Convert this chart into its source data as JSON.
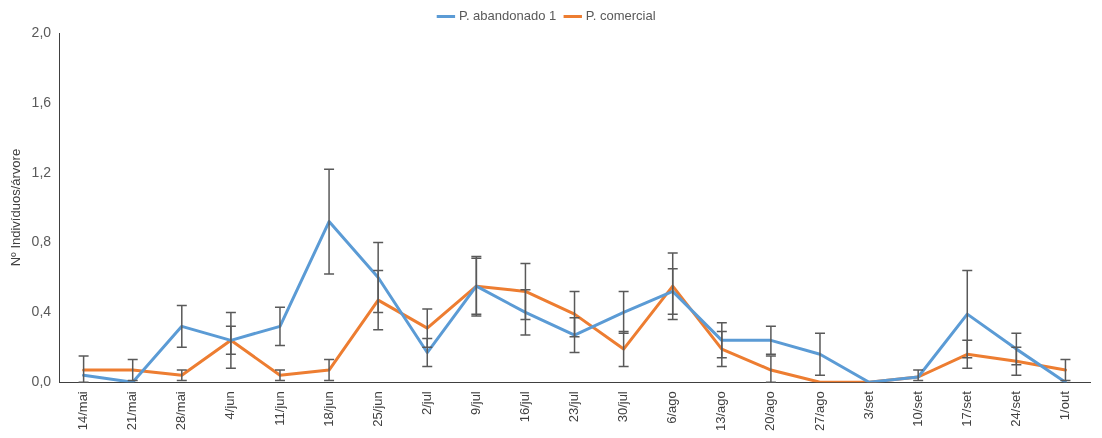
{
  "chart_data": {
    "type": "line",
    "ylabel": "Nº Indivíduos/árvore",
    "categories": [
      "14/mai",
      "21/mai",
      "28/mai",
      "4/jun",
      "11/jun",
      "18/jun",
      "25/jun",
      "2/jul",
      "9/jul",
      "16/jul",
      "23/jul",
      "30/jul",
      "6/ago",
      "13/ago",
      "20/ago",
      "27/ago",
      "3/set",
      "10/set",
      "17/set",
      "24/set",
      "1/out"
    ],
    "series": [
      {
        "name": "P. abandonado 1",
        "color": "#5b9bd5",
        "values": [
          0.04,
          0,
          0.32,
          0.24,
          0.32,
          0.92,
          0.6,
          0.17,
          0.55,
          0.4,
          0.27,
          0.4,
          0.52,
          0.24,
          0.24,
          0.16,
          0,
          0.03,
          0.39,
          0.19,
          0
        ],
        "errors": [
          [
            0,
            0.15
          ],
          null,
          0.12,
          0.16,
          0.11,
          0.3,
          0.2,
          0.08,
          0.17,
          0.13,
          0.1,
          0.12,
          0.13,
          0.1,
          0.08,
          0.12,
          null,
          null,
          0.25,
          0.09,
          null
        ]
      },
      {
        "name": "P. comercial",
        "color": "#ed7d31",
        "values": [
          0.07,
          0.07,
          0.04,
          0.24,
          0.04,
          0.07,
          0.47,
          0.31,
          0.55,
          0.52,
          0.39,
          0.19,
          0.55,
          0.19,
          0.07,
          0,
          0,
          0.03,
          0.16,
          0.12,
          0.07
        ],
        "errors": [
          null,
          0.06,
          0.03,
          0.08,
          0.03,
          0.06,
          0.17,
          0.11,
          0.16,
          0.16,
          0.13,
          0.1,
          0.19,
          0.1,
          [
            0,
            0.15
          ],
          null,
          null,
          [
            0.01,
            0.07
          ],
          0.08,
          0.08,
          0.06
        ]
      }
    ],
    "ylim": [
      0,
      2
    ],
    "yticks": [
      {
        "value": 0,
        "label": "0,0"
      },
      {
        "value": 0.4,
        "label": "0,4"
      },
      {
        "value": 0.8,
        "label": "0,8"
      },
      {
        "value": 1.2,
        "label": "1,2"
      },
      {
        "value": 1.6,
        "label": "1,6"
      },
      {
        "value": 2,
        "label": "2,0"
      }
    ],
    "grid": false,
    "legend": "top",
    "marker": "none",
    "line_style": "solid"
  }
}
